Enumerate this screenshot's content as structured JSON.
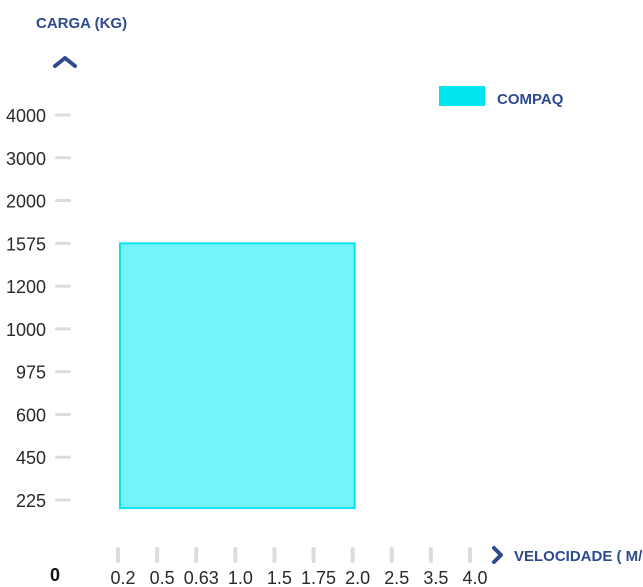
{
  "chart_data": {
    "type": "bar",
    "title": "",
    "ylabel": "CARGA (KG)",
    "xlabel": "VELOCIDADE ( M/S )",
    "origin_label": "0",
    "y_categories": [
      "225",
      "450",
      "600",
      "975",
      "1000",
      "1200",
      "1575",
      "2000",
      "3000",
      "4000"
    ],
    "x_categories": [
      "0.2",
      "0.5",
      "0.63",
      "1.0",
      "1.5",
      "1.75",
      "2.0",
      "2.5",
      "3.5",
      "4.0"
    ],
    "series": [
      {
        "name": "COMPAQ",
        "color": "#00e5ee",
        "fill": "#74f4f8",
        "x_range": [
          "0.2",
          "2.0"
        ],
        "y_range": [
          "225",
          "1575"
        ]
      }
    ],
    "legend_position": "top-right",
    "grid": false,
    "colors": {
      "axis_title": "#2e4a8f",
      "tick_mark": "#dcdcdc",
      "tick_label": "#2a2a2a"
    },
    "icons": {
      "y_axis_arrow": "chevron-up-icon",
      "x_axis_arrow": "chevron-right-icon"
    }
  }
}
